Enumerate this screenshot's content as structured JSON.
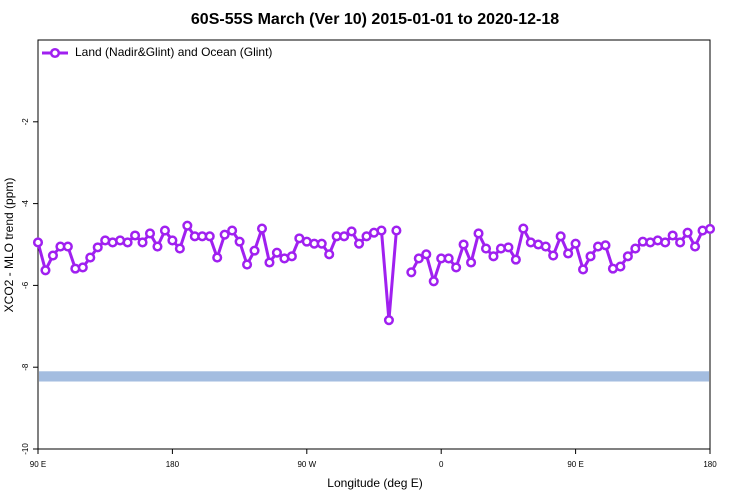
{
  "chart_data": {
    "type": "line",
    "title": "60S-55S March (Ver 10)   2015-01-01 to 2020-12-18",
    "x_label": "Longitude (deg E)",
    "y_label": "XCO2 - MLO trend (ppm)",
    "xlim": [
      90,
      540
    ],
    "xticks": [
      {
        "value": 90,
        "label": "90 E"
      },
      180,
      {
        "value": 270,
        "label": "90 W"
      },
      {
        "value": 360,
        "label": "0"
      },
      {
        "value": 450,
        "label": "90 E"
      },
      {
        "value": 540,
        "label": "180"
      }
    ],
    "ylim": [
      -10,
      0
    ],
    "yticks": [
      -10,
      -8,
      -6,
      -4,
      -2
    ],
    "legend": "top-left",
    "band": {
      "values": [
        -8.35,
        -8.1
      ],
      "color": "#a4bde0"
    },
    "x": [
      90,
      95,
      100,
      105,
      110,
      115,
      120,
      125,
      130,
      135,
      140,
      145,
      150,
      155,
      160,
      165,
      170,
      175,
      180,
      185,
      190,
      195,
      200,
      205,
      210,
      215,
      220,
      225,
      230,
      235,
      240,
      245,
      250,
      255,
      260,
      265,
      270,
      275,
      280,
      285,
      290,
      295,
      300,
      305,
      310,
      315,
      320,
      325,
      330,
      335,
      340,
      345,
      350,
      355,
      360,
      365,
      370,
      375,
      380,
      385,
      390,
      395,
      400,
      405,
      410,
      415,
      420,
      425,
      430,
      435,
      440,
      445,
      450,
      455,
      460,
      465,
      470,
      475,
      480,
      485,
      490,
      495,
      500,
      505,
      510,
      515,
      520,
      525,
      530,
      535,
      540
    ],
    "series": [
      {
        "name": "Land (Nadir&Glint) and Ocean (Glint)",
        "color": "#a020f0",
        "values": [
          -4.95,
          -5.63,
          -5.27,
          -5.05,
          -5.05,
          -5.59,
          -5.56,
          -5.32,
          -5.07,
          -4.9,
          -4.95,
          -4.9,
          -4.95,
          -4.78,
          -4.95,
          -4.73,
          -5.05,
          -4.66,
          -4.9,
          -5.1,
          -4.54,
          -4.8,
          -4.8,
          -4.8,
          -5.32,
          -4.76,
          -4.66,
          -4.93,
          -5.49,
          -5.15,
          -4.61,
          -5.44,
          -5.2,
          -5.34,
          -5.29,
          -4.85,
          -4.93,
          -4.98,
          -4.98,
          -5.24,
          -4.8,
          -4.8,
          -4.68,
          -4.98,
          -4.8,
          -4.71,
          -4.66,
          -6.85,
          -4.66,
          null,
          -5.68,
          -5.34,
          -5.24,
          -5.9,
          -5.34,
          -5.34,
          -5.56,
          -5.0,
          -5.44,
          -4.73,
          -5.1,
          -5.29,
          -5.1,
          -5.07,
          -5.37,
          -4.61,
          -4.95,
          -5.0,
          -5.05,
          -5.27,
          -4.8,
          -5.22,
          -4.98,
          -5.61,
          -5.29,
          -5.05,
          -5.02,
          -5.59,
          -5.54,
          -5.29,
          -5.1,
          -4.93,
          -4.95,
          -4.9,
          -4.95,
          -4.78,
          -4.95,
          -4.71,
          -5.05,
          -4.66,
          -4.62
        ]
      }
    ]
  }
}
